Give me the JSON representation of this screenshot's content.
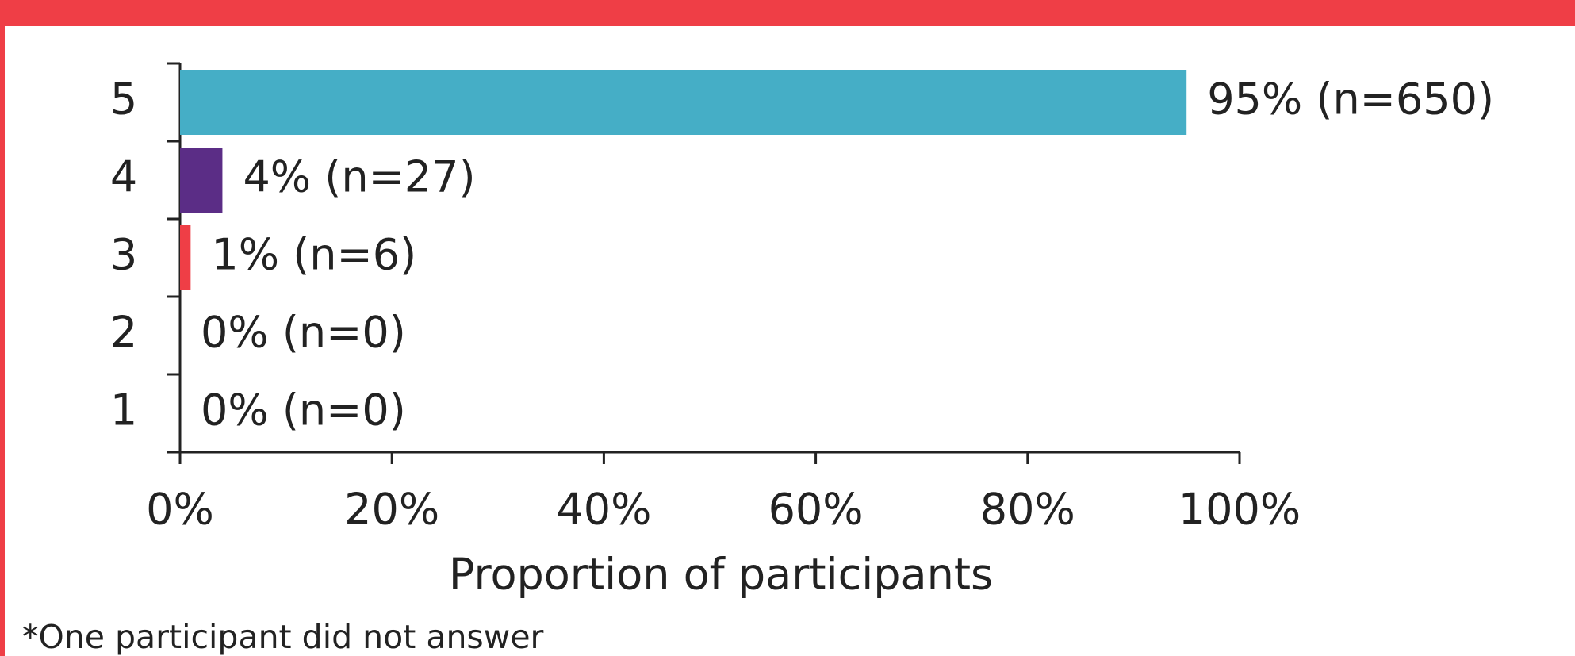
{
  "chart_data": {
    "type": "hbar",
    "categories": [
      "5",
      "4",
      "3",
      "2",
      "1"
    ],
    "values": [
      95,
      4,
      1,
      0,
      0
    ],
    "value_labels": [
      "95% (n=650)",
      "4% (n=27)",
      "1% (n=6)",
      "0% (n=0)",
      "0% (n=0)"
    ],
    "colors": [
      "#45aec6",
      "#5b2d86",
      "#ef3e46",
      "#ef3e46",
      "#ef3e46"
    ],
    "xlim": [
      0,
      100
    ],
    "xticks": [
      {
        "value": 0,
        "label": "0%"
      },
      {
        "value": 20,
        "label": "20%"
      },
      {
        "value": 40,
        "label": "40%"
      },
      {
        "value": 60,
        "label": "60%"
      },
      {
        "value": 80,
        "label": "80%"
      },
      {
        "value": 100,
        "label": "100%"
      }
    ],
    "xlabel": "Proportion of participants",
    "footnote": "*One participant did not answer"
  }
}
